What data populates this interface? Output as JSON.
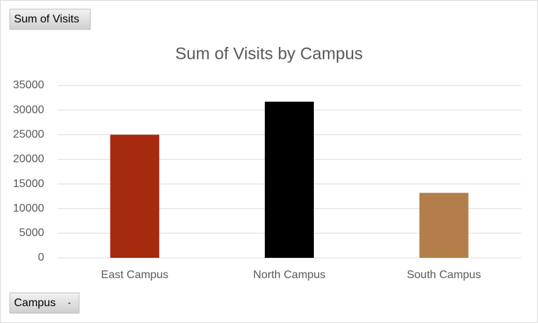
{
  "chart_data": {
    "type": "bar",
    "title": "Sum of Visits by Campus",
    "categories": [
      "East Campus",
      "North Campus",
      "South Campus"
    ],
    "values": [
      25000,
      31700,
      13200
    ],
    "colors": [
      "#a52a0e",
      "#000000",
      "#b47e4a"
    ],
    "ylim": [
      0,
      35000
    ],
    "yticks": [
      0,
      5000,
      10000,
      15000,
      20000,
      25000,
      30000,
      35000
    ],
    "grid": true
  },
  "field_buttons": {
    "value_field": "Sum of Visits",
    "axis_field": "Campus"
  }
}
